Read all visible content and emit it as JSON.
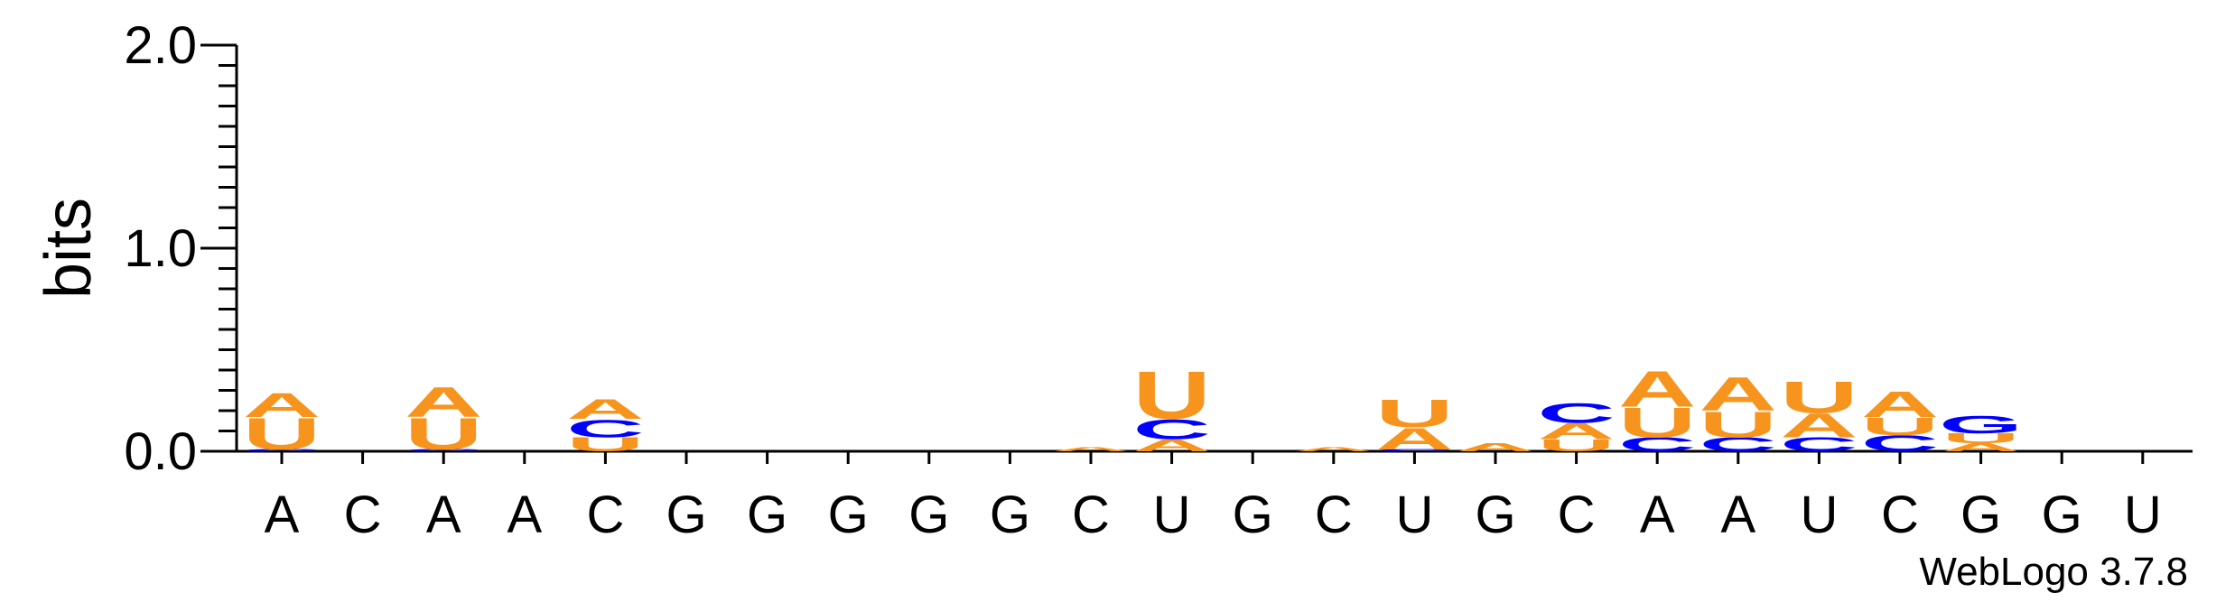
{
  "chart_data": {
    "type": "sequence-logo",
    "ylabel": "bits",
    "ylim": [
      0,
      2.0
    ],
    "yticks": [
      "0.0",
      "1.0",
      "2.0"
    ],
    "credit": "WebLogo 3.7.8",
    "colors": {
      "A": "#f7941d",
      "U": "#f7941d",
      "C": "#0000ff",
      "G": "#0000ff"
    },
    "positions": [
      {
        "label": "A",
        "stack": [
          {
            "l": "C",
            "h": 0.01
          },
          {
            "l": "U",
            "h": 0.16
          },
          {
            "l": "A",
            "h": 0.12
          }
        ]
      },
      {
        "label": "C",
        "stack": []
      },
      {
        "label": "A",
        "stack": [
          {
            "l": "C",
            "h": 0.01
          },
          {
            "l": "U",
            "h": 0.16
          },
          {
            "l": "A",
            "h": 0.15
          }
        ]
      },
      {
        "label": "A",
        "stack": []
      },
      {
        "label": "C",
        "stack": [
          {
            "l": "U",
            "h": 0.07
          },
          {
            "l": "C",
            "h": 0.09
          },
          {
            "l": "A",
            "h": 0.1
          }
        ]
      },
      {
        "label": "G",
        "stack": []
      },
      {
        "label": "G",
        "stack": []
      },
      {
        "label": "G",
        "stack": []
      },
      {
        "label": "G",
        "stack": []
      },
      {
        "label": "G",
        "stack": []
      },
      {
        "label": "C",
        "stack": [
          {
            "l": "A",
            "h": 0.02
          }
        ]
      },
      {
        "label": "U",
        "stack": [
          {
            "l": "A",
            "h": 0.06
          },
          {
            "l": "C",
            "h": 0.1
          },
          {
            "l": "U",
            "h": 0.24
          }
        ]
      },
      {
        "label": "G",
        "stack": []
      },
      {
        "label": "C",
        "stack": [
          {
            "l": "A",
            "h": 0.02
          }
        ]
      },
      {
        "label": "U",
        "stack": [
          {
            "l": "C",
            "h": 0.01
          },
          {
            "l": "A",
            "h": 0.11
          },
          {
            "l": "U",
            "h": 0.14
          }
        ]
      },
      {
        "label": "G",
        "stack": [
          {
            "l": "A",
            "h": 0.04
          }
        ]
      },
      {
        "label": "C",
        "stack": [
          {
            "l": "U",
            "h": 0.06
          },
          {
            "l": "A",
            "h": 0.08
          },
          {
            "l": "C",
            "h": 0.1
          }
        ]
      },
      {
        "label": "A",
        "stack": [
          {
            "l": "C",
            "h": 0.07
          },
          {
            "l": "U",
            "h": 0.15
          },
          {
            "l": "A",
            "h": 0.18
          }
        ]
      },
      {
        "label": "A",
        "stack": [
          {
            "l": "C",
            "h": 0.07
          },
          {
            "l": "U",
            "h": 0.13
          },
          {
            "l": "A",
            "h": 0.17
          }
        ]
      },
      {
        "label": "U",
        "stack": [
          {
            "l": "C",
            "h": 0.07
          },
          {
            "l": "A",
            "h": 0.12
          },
          {
            "l": "U",
            "h": 0.16
          }
        ]
      },
      {
        "label": "C",
        "stack": [
          {
            "l": "C",
            "h": 0.08
          },
          {
            "l": "U",
            "h": 0.09
          },
          {
            "l": "A",
            "h": 0.13
          }
        ]
      },
      {
        "label": "G",
        "stack": [
          {
            "l": "A",
            "h": 0.04
          },
          {
            "l": "U",
            "h": 0.05
          },
          {
            "l": "G",
            "h": 0.09
          }
        ]
      },
      {
        "label": "G",
        "stack": []
      },
      {
        "label": "U",
        "stack": []
      }
    ]
  }
}
